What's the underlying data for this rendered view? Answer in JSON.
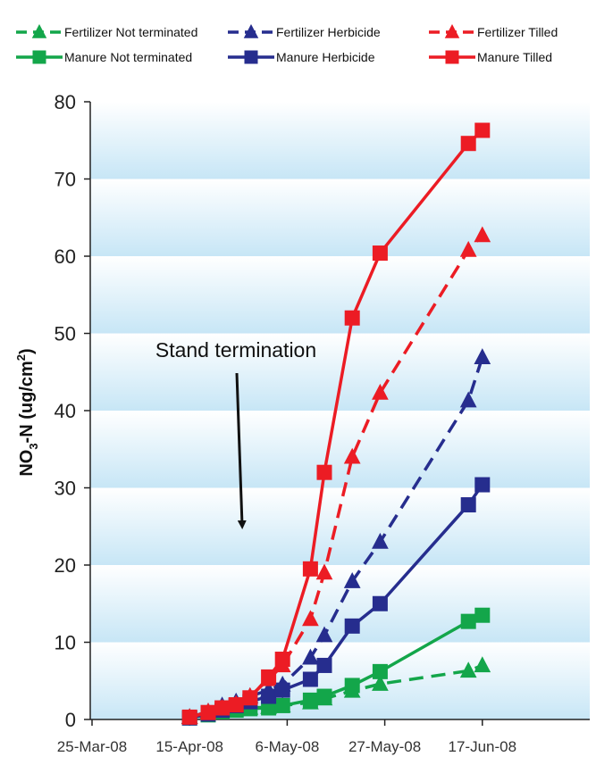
{
  "chart_data": {
    "type": "line",
    "title": "",
    "xlabel": "",
    "ylabel_main": "NO",
    "ylabel_sub": "3",
    "ylabel_rest": "-N (ug/cm",
    "ylabel_sup": "2",
    "ylabel_close": ")",
    "ylim": [
      0,
      80
    ],
    "y_ticks": [
      "0",
      "10",
      "20",
      "30",
      "40",
      "50",
      "60",
      "70",
      "80"
    ],
    "x_ticks": [
      "25-Mar-08",
      "15-Apr-08",
      "6-May-08",
      "27-May-08",
      "17-Jun-08"
    ],
    "x_tick_days": [
      0,
      21,
      42,
      63,
      84
    ],
    "xlim_days": [
      0,
      94
    ],
    "grid": "alternating horizontal bands",
    "legend_position": "top",
    "annotation": "Stand termination",
    "series": [
      {
        "name": "Fertilizer Not terminated",
        "color": "#13a64a",
        "dash": true,
        "marker": "triangle",
        "x": [
          "15-Apr-08",
          "19-Apr-08",
          "22-Apr-08",
          "25-Apr-08",
          "28-Apr-08",
          "2-May-08",
          "5-May-08",
          "11-May-08",
          "14-May-08",
          "20-May-08",
          "26-May-08",
          "14-Jun-08",
          "17-Jun-08"
        ],
        "values": [
          0.3,
          0.8,
          1.2,
          1.3,
          1.5,
          1.6,
          1.8,
          2.2,
          2.7,
          3.7,
          4.6,
          6.3,
          7.0
        ]
      },
      {
        "name": "Fertilizer Herbicide",
        "color": "#262d8e",
        "dash": true,
        "marker": "triangle",
        "x": [
          "15-Apr-08",
          "19-Apr-08",
          "22-Apr-08",
          "25-Apr-08",
          "28-Apr-08",
          "2-May-08",
          "5-May-08",
          "11-May-08",
          "14-May-08",
          "20-May-08",
          "26-May-08",
          "14-Jun-08",
          "17-Jun-08"
        ],
        "values": [
          0.3,
          1.0,
          1.8,
          2.3,
          3.0,
          3.8,
          4.5,
          8.0,
          10.9,
          17.9,
          23.0,
          41.3,
          46.9
        ]
      },
      {
        "name": "Fertilizer Tilled",
        "color": "#ec1c24",
        "dash": true,
        "marker": "triangle",
        "x": [
          "15-Apr-08",
          "19-Apr-08",
          "22-Apr-08",
          "25-Apr-08",
          "28-Apr-08",
          "2-May-08",
          "5-May-08",
          "11-May-08",
          "14-May-08",
          "20-May-08",
          "26-May-08",
          "14-Jun-08",
          "17-Jun-08"
        ],
        "values": [
          0.3,
          1.0,
          1.5,
          2.0,
          3.0,
          5.2,
          7.0,
          13.0,
          19.0,
          34.0,
          42.3,
          60.8,
          62.7
        ]
      },
      {
        "name": "Manure Not terminated",
        "color": "#13a64a",
        "dash": false,
        "marker": "square",
        "x": [
          "15-Apr-08",
          "19-Apr-08",
          "22-Apr-08",
          "25-Apr-08",
          "28-Apr-08",
          "2-May-08",
          "5-May-08",
          "11-May-08",
          "14-May-08",
          "20-May-08",
          "26-May-08",
          "14-Jun-08",
          "17-Jun-08"
        ],
        "values": [
          0.2,
          0.6,
          1.0,
          1.2,
          1.4,
          1.5,
          1.8,
          2.5,
          3.0,
          4.4,
          6.2,
          12.7,
          13.5
        ]
      },
      {
        "name": "Manure Herbicide",
        "color": "#262d8e",
        "dash": false,
        "marker": "square",
        "x": [
          "15-Apr-08",
          "19-Apr-08",
          "22-Apr-08",
          "25-Apr-08",
          "28-Apr-08",
          "2-May-08",
          "5-May-08",
          "11-May-08",
          "14-May-08",
          "20-May-08",
          "26-May-08",
          "14-Jun-08",
          "17-Jun-08"
        ],
        "values": [
          0.2,
          0.7,
          1.2,
          1.8,
          2.3,
          3.0,
          3.8,
          5.2,
          7.0,
          12.1,
          15.0,
          27.8,
          30.4
        ]
      },
      {
        "name": "Manure Tilled",
        "color": "#ec1c24",
        "dash": false,
        "marker": "square",
        "x": [
          "15-Apr-08",
          "19-Apr-08",
          "22-Apr-08",
          "25-Apr-08",
          "28-Apr-08",
          "2-May-08",
          "5-May-08",
          "11-May-08",
          "14-May-08",
          "20-May-08",
          "26-May-08",
          "14-Jun-08",
          "17-Jun-08"
        ],
        "values": [
          0.3,
          0.9,
          1.5,
          1.9,
          2.8,
          5.5,
          7.8,
          19.5,
          32.0,
          52.0,
          60.4,
          74.6,
          76.3
        ]
      }
    ]
  }
}
